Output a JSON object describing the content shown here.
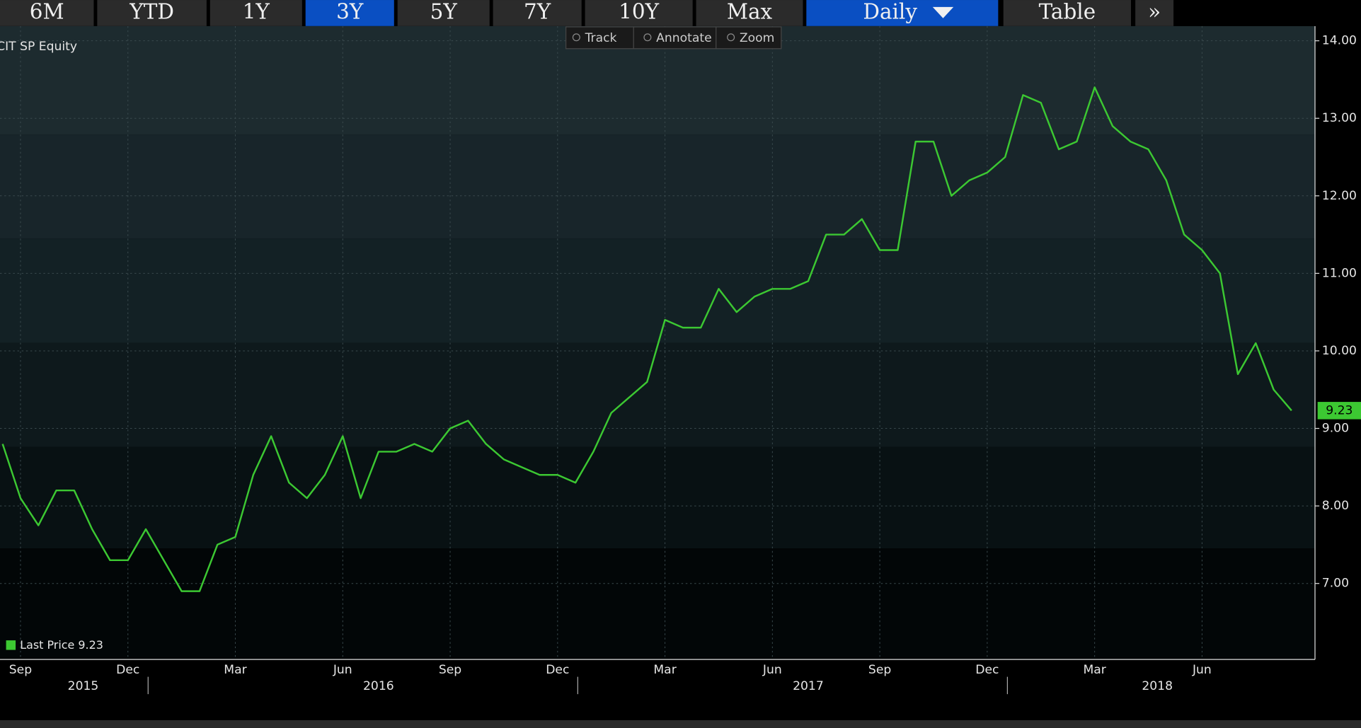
{
  "toolbar": {
    "buttons": [
      {
        "label": "6M",
        "selected": false
      },
      {
        "label": "YTD",
        "selected": false
      },
      {
        "label": "1Y",
        "selected": false
      },
      {
        "label": "3Y",
        "selected": true
      },
      {
        "label": "5Y",
        "selected": false
      },
      {
        "label": "7Y",
        "selected": false
      },
      {
        "label": "10Y",
        "selected": false
      },
      {
        "label": "Max",
        "selected": false
      },
      {
        "label": "Daily",
        "selected": true
      },
      {
        "label": "Table",
        "selected": false
      },
      {
        "label": "»",
        "selected": false
      }
    ]
  },
  "chart_tools": [
    "Track",
    "Annotate",
    "Zoom"
  ],
  "chart_data": {
    "type": "line",
    "title": "CIT SP Equity",
    "categories": [
      null,
      "Sep",
      null,
      null,
      null,
      null,
      null,
      "Dec",
      null,
      null,
      null,
      null,
      null,
      "Mar",
      null,
      null,
      null,
      null,
      null,
      "Jun",
      null,
      null,
      null,
      null,
      null,
      "Sep",
      null,
      null,
      null,
      null,
      null,
      "Dec",
      null,
      null,
      null,
      null,
      null,
      "Mar",
      null,
      null,
      null,
      null,
      null,
      "Jun",
      null,
      null,
      null,
      null,
      null,
      "Sep",
      null,
      null,
      null,
      null,
      null,
      "Dec",
      null,
      null,
      null,
      null,
      null,
      "Mar",
      null,
      null,
      null,
      null,
      null,
      "Jun",
      null,
      null,
      null,
      null,
      null
    ],
    "years": [
      "2015",
      "2016",
      "2017",
      "2018"
    ],
    "series": [
      {
        "name": "Last Price",
        "color": "#3cc832",
        "values": [
          8.8,
          8.1,
          7.75,
          8.2,
          8.2,
          7.7,
          7.3,
          7.3,
          7.7,
          7.3,
          6.9,
          6.9,
          7.5,
          7.6,
          8.4,
          8.9,
          8.3,
          8.1,
          8.4,
          8.9,
          8.1,
          8.7,
          8.7,
          8.8,
          8.7,
          9.0,
          9.1,
          8.8,
          8.6,
          8.5,
          8.4,
          8.4,
          8.3,
          8.7,
          9.2,
          9.4,
          9.6,
          10.4,
          10.3,
          10.3,
          10.8,
          10.5,
          10.7,
          10.8,
          10.8,
          10.9,
          11.5,
          11.5,
          11.7,
          11.3,
          11.3,
          12.7,
          12.7,
          12.0,
          12.2,
          12.3,
          12.5,
          13.3,
          13.2,
          12.6,
          12.7,
          13.4,
          12.9,
          12.7,
          12.6,
          12.2,
          11.5,
          11.3,
          11.0,
          9.7,
          10.1,
          9.5,
          9.23
        ]
      }
    ],
    "ylim": [
      6.02,
      14.19
    ],
    "yticks": [
      {
        "value": 7,
        "label": "7.00"
      },
      {
        "value": 8,
        "label": "8.00"
      },
      {
        "value": 9,
        "label": "9.00"
      },
      {
        "value": 10,
        "label": "10.00"
      },
      {
        "value": 11,
        "label": "11.00"
      },
      {
        "value": 12,
        "label": "12.00"
      },
      {
        "value": 13,
        "label": "13.00"
      },
      {
        "value": 14,
        "label": "14.00"
      }
    ],
    "grid": true
  }
}
